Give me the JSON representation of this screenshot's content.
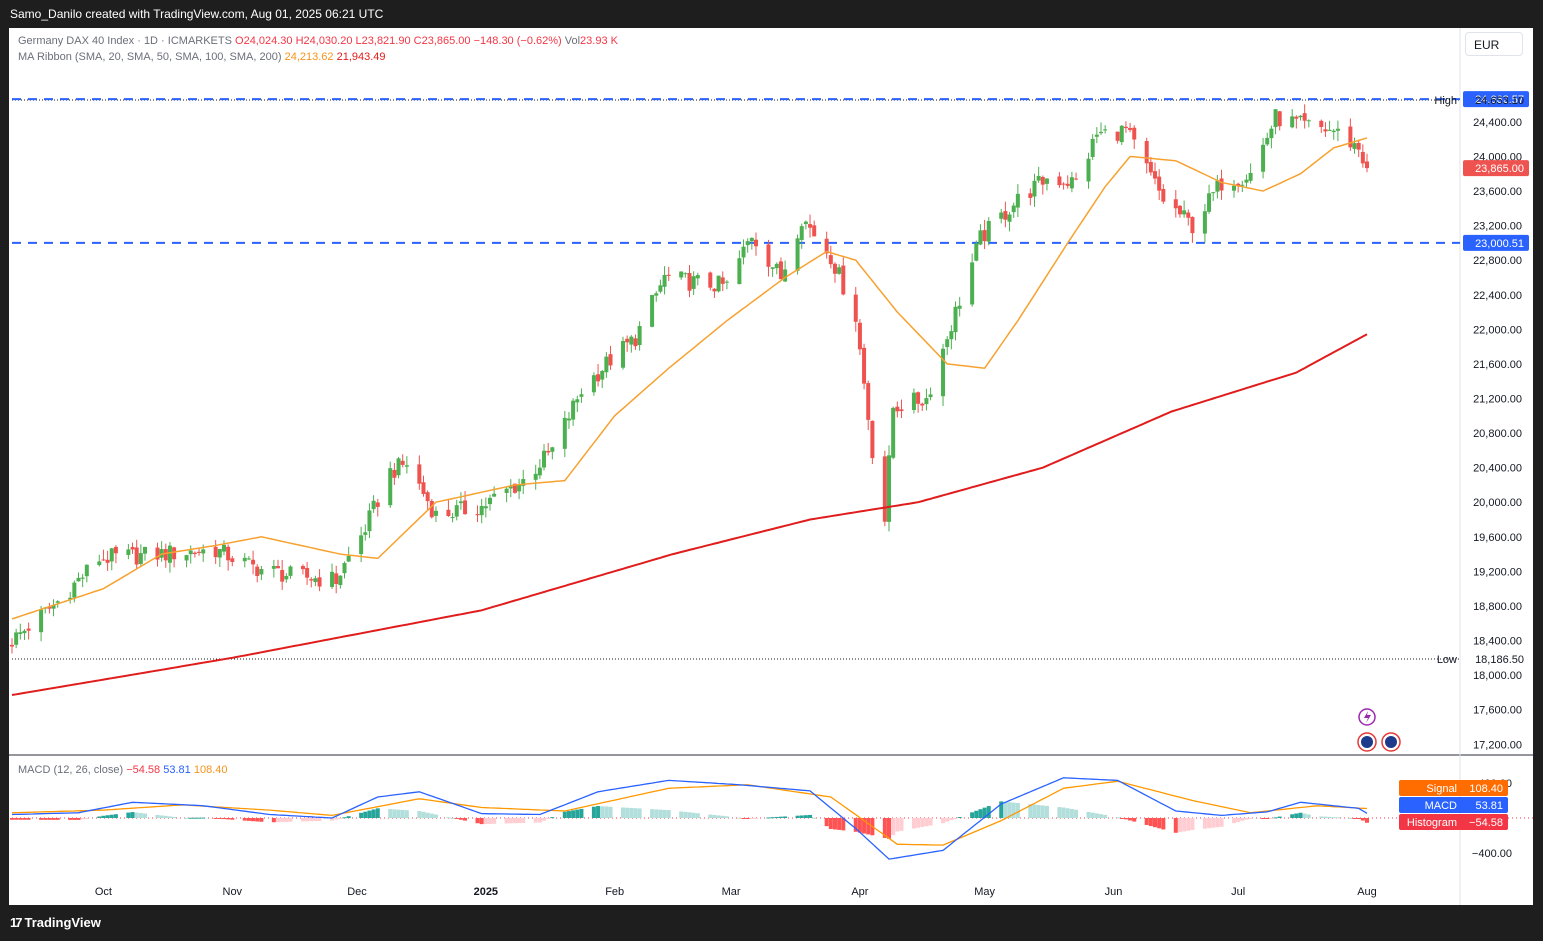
{
  "header": {
    "attribution": "Samo_Danilo created with TradingView.com, Aug 01, 2025 06:21 UTC"
  },
  "footer": {
    "brand": "TradingView",
    "brand_mark": "17"
  },
  "currency": "EUR",
  "legend": {
    "symbol": "Germany DAX 40 Index · 1D · ICMARKETS",
    "open": "O24,024.30",
    "high": "H24,030.20",
    "low": "L23,821.90",
    "close": "C23,865.00",
    "change": "−148.30 (−0.62%)",
    "volume_label": "Vol",
    "volume": "23.93 K",
    "ma_title": "MA Ribbon (SMA, 20, SMA, 50, SMA, 100, SMA, 200)",
    "ma1": "24,213.62",
    "ma2": "21,943.49",
    "macd_title": "MACD (12, 26, close)",
    "macd_hist": "−54.58",
    "macd_line": "53.81",
    "macd_signal": "108.40"
  },
  "colors": {
    "up": "#26a69a",
    "up_candle": "#4caf50",
    "down": "#ef5350",
    "sma20": "#f7a12f",
    "sma200": "#e01c1c",
    "level": "#2962ff",
    "macd": "#2962ff",
    "signal": "#ff9800"
  },
  "chart_data": [
    {
      "type": "candlestick",
      "title": "Germany DAX 40 Index · 1D · ICMARKETS",
      "ylim": [
        17150,
        24900
      ],
      "y_ticks": [
        "24,400.00",
        "24,000.00",
        "23,600.00",
        "23,200.00",
        "22,800.00",
        "22,400.00",
        "22,000.00",
        "21,600.00",
        "21,200.00",
        "20,800.00",
        "20,400.00",
        "20,000.00",
        "19,600.00",
        "19,200.00",
        "18,800.00",
        "18,400.00",
        "18,000.00",
        "17,600.00",
        "17,200.00"
      ],
      "x_ticks": [
        "Oct",
        "Nov",
        "Dec",
        "2025",
        "Feb",
        "Mar",
        "Apr",
        "May",
        "Jun",
        "Jul",
        "Aug"
      ],
      "x_tick_dates": [
        "2024-10-01",
        "2024-11-01",
        "2024-12-01",
        "2025-01-01",
        "2025-02-01",
        "2025-03-01",
        "2025-04-01",
        "2025-05-01",
        "2025-06-01",
        "2025-07-01",
        "2025-08-01"
      ],
      "date_range": [
        "2024-09-09",
        "2025-08-01"
      ],
      "close_path": [
        [
          "2024-09-09",
          18400
        ],
        [
          "2024-09-20",
          18850
        ],
        [
          "2024-09-30",
          19350
        ],
        [
          "2024-10-15",
          19400
        ],
        [
          "2024-10-28",
          19450
        ],
        [
          "2024-11-06",
          19250
        ],
        [
          "2024-11-15",
          19150
        ],
        [
          "2024-11-26",
          19100
        ],
        [
          "2024-12-03",
          19700
        ],
        [
          "2024-12-09",
          20350
        ],
        [
          "2024-12-13",
          20450
        ],
        [
          "2024-12-20",
          19850
        ],
        [
          "2024-12-31",
          19950
        ],
        [
          "2025-01-10",
          20250
        ],
        [
          "2025-01-17",
          20600
        ],
        [
          "2025-01-24",
          21300
        ],
        [
          "2025-01-31",
          21650
        ],
        [
          "2025-02-06",
          21900
        ],
        [
          "2025-02-13",
          22600
        ],
        [
          "2025-02-19",
          22550
        ],
        [
          "2025-02-28",
          22500
        ],
        [
          "2025-03-06",
          23100
        ],
        [
          "2025-03-13",
          22600
        ],
        [
          "2025-03-18",
          23300
        ],
        [
          "2025-03-25",
          22850
        ],
        [
          "2025-03-31",
          22150
        ],
        [
          "2025-04-04",
          20600
        ],
        [
          "2025-04-07",
          19800
        ],
        [
          "2025-04-09",
          21100
        ],
        [
          "2025-04-17",
          21200
        ],
        [
          "2025-04-24",
          22200
        ],
        [
          "2025-04-30",
          23050
        ],
        [
          "2025-05-09",
          23500
        ],
        [
          "2025-05-16",
          23750
        ],
        [
          "2025-05-23",
          23700
        ],
        [
          "2025-05-28",
          24250
        ],
        [
          "2025-06-04",
          24300
        ],
        [
          "2025-06-13",
          23500
        ],
        [
          "2025-06-20",
          23200
        ],
        [
          "2025-06-27",
          23700
        ],
        [
          "2025-07-04",
          23800
        ],
        [
          "2025-07-10",
          24450
        ],
        [
          "2025-07-17",
          24350
        ],
        [
          "2025-07-24",
          24300
        ],
        [
          "2025-07-30",
          24100
        ],
        [
          "2025-08-01",
          23865
        ]
      ],
      "sma20": [
        [
          "2024-09-09",
          18650
        ],
        [
          "2024-10-01",
          19000
        ],
        [
          "2024-10-15",
          19400
        ],
        [
          "2024-10-28",
          19500
        ],
        [
          "2024-11-08",
          19600
        ],
        [
          "2024-11-27",
          19400
        ],
        [
          "2024-12-06",
          19350
        ],
        [
          "2024-12-20",
          20000
        ],
        [
          "2025-01-08",
          20200
        ],
        [
          "2025-01-20",
          20250
        ],
        [
          "2025-02-01",
          21000
        ],
        [
          "2025-02-14",
          21550
        ],
        [
          "2025-02-28",
          22100
        ],
        [
          "2025-03-14",
          22600
        ],
        [
          "2025-03-24",
          22900
        ],
        [
          "2025-03-31",
          22800
        ],
        [
          "2025-04-10",
          22200
        ],
        [
          "2025-04-22",
          21600
        ],
        [
          "2025-05-01",
          21550
        ],
        [
          "2025-05-09",
          22100
        ],
        [
          "2025-05-21",
          23000
        ],
        [
          "2025-05-30",
          23650
        ],
        [
          "2025-06-05",
          24000
        ],
        [
          "2025-06-16",
          23950
        ],
        [
          "2025-06-27",
          23700
        ],
        [
          "2025-07-07",
          23600
        ],
        [
          "2025-07-16",
          23800
        ],
        [
          "2025-07-24",
          24100
        ],
        [
          "2025-08-01",
          24213.62
        ]
      ],
      "sma200": [
        [
          "2024-09-09",
          17770
        ],
        [
          "2024-11-01",
          18200
        ],
        [
          "2024-12-31",
          18750
        ],
        [
          "2025-02-15",
          19400
        ],
        [
          "2025-03-20",
          19800
        ],
        [
          "2025-04-15",
          20000
        ],
        [
          "2025-05-15",
          20400
        ],
        [
          "2025-06-15",
          21050
        ],
        [
          "2025-07-15",
          21500
        ],
        [
          "2025-08-01",
          21943.49
        ]
      ],
      "levels": [
        {
          "value": "24,662.57",
          "y": 24662.57,
          "style": "dashed"
        },
        {
          "value": "23,000.51",
          "y": 23000.51,
          "style": "dashed"
        }
      ],
      "high_label": "High",
      "high_value": "24,653.10",
      "high": 24653.1,
      "low_label": "Low",
      "low_value": "18,186.50",
      "low": 18186.5,
      "last_price": "23,865.00",
      "last": 23865.0
    },
    {
      "type": "line+histogram",
      "title": "MACD (12, 26, close)",
      "ylim": [
        -560,
        520
      ],
      "y_ticks": [
        "400.00",
        "−400.00"
      ],
      "y_tick_values": [
        400,
        -400
      ],
      "series": [
        {
          "name": "MACD",
          "value_label": "53.81",
          "value": 53.81,
          "points": [
            [
              "2024-09-09",
              40
            ],
            [
              "2024-09-25",
              60
            ],
            [
              "2024-10-08",
              180
            ],
            [
              "2024-10-25",
              140
            ],
            [
              "2024-11-10",
              40
            ],
            [
              "2024-11-25",
              0
            ],
            [
              "2024-12-06",
              240
            ],
            [
              "2024-12-16",
              300
            ],
            [
              "2024-12-31",
              50
            ],
            [
              "2025-01-14",
              40
            ],
            [
              "2025-01-28",
              300
            ],
            [
              "2025-02-14",
              430
            ],
            [
              "2025-03-03",
              380
            ],
            [
              "2025-03-20",
              310
            ],
            [
              "2025-03-31",
              -120
            ],
            [
              "2025-04-08",
              -470
            ],
            [
              "2025-04-21",
              -370
            ],
            [
              "2025-05-05",
              160
            ],
            [
              "2025-05-20",
              460
            ],
            [
              "2025-06-02",
              430
            ],
            [
              "2025-06-16",
              80
            ],
            [
              "2025-06-27",
              30
            ],
            [
              "2025-07-08",
              70
            ],
            [
              "2025-07-16",
              180
            ],
            [
              "2025-07-30",
              110
            ],
            [
              "2025-08-01",
              53.81
            ]
          ]
        },
        {
          "name": "Signal",
          "value_label": "108.40",
          "value": 108.4,
          "points": [
            [
              "2024-09-09",
              60
            ],
            [
              "2024-10-01",
              90
            ],
            [
              "2024-10-20",
              150
            ],
            [
              "2024-11-10",
              90
            ],
            [
              "2024-11-25",
              30
            ],
            [
              "2024-12-16",
              220
            ],
            [
              "2024-12-31",
              120
            ],
            [
              "2025-01-20",
              80
            ],
            [
              "2025-02-14",
              340
            ],
            [
              "2025-03-05",
              380
            ],
            [
              "2025-03-25",
              240
            ],
            [
              "2025-04-10",
              -300
            ],
            [
              "2025-04-21",
              -310
            ],
            [
              "2025-05-05",
              -30
            ],
            [
              "2025-05-20",
              340
            ],
            [
              "2025-06-02",
              420
            ],
            [
              "2025-06-20",
              200
            ],
            [
              "2025-07-04",
              60
            ],
            [
              "2025-07-20",
              140
            ],
            [
              "2025-08-01",
              108.4
            ]
          ]
        },
        {
          "name": "Histogram",
          "value_label": "−54.58",
          "value": -54.58
        }
      ]
    }
  ]
}
